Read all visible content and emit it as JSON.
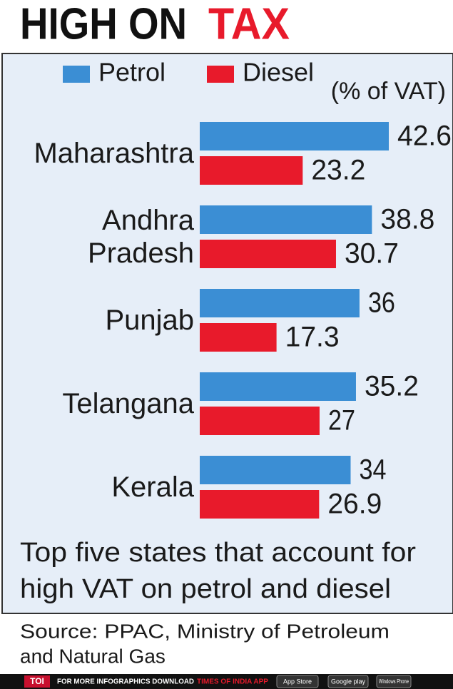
{
  "chart_data": {
    "type": "bar",
    "orientation": "horizontal",
    "title": "HIGH ON",
    "title_highlight": "TAX",
    "unit_label": "(% of VAT)",
    "categories": [
      "Maharashtra",
      "Andhra Pradesh",
      "Punjab",
      "Telangana",
      "Kerala"
    ],
    "series": [
      {
        "name": "Petrol",
        "color": "#3b8ed4",
        "values": [
          42.6,
          38.8,
          36,
          35.2,
          34
        ]
      },
      {
        "name": "Diesel",
        "color": "#e81a2b",
        "values": [
          23.2,
          30.7,
          17.3,
          27,
          26.9
        ]
      }
    ],
    "description": [
      "Top five states that account for",
      "high VAT on petrol and diesel"
    ],
    "source": [
      "Source: PPAC, Ministry of Petroleum",
      "and Natural Gas"
    ]
  },
  "footer": {
    "brand": "TOI",
    "text": "FOR MORE INFOGRAPHICS DOWNLOAD",
    "app": "TIMES OF INDIA APP",
    "stores": [
      "App Store",
      "Google play",
      "Windows Phone"
    ]
  }
}
